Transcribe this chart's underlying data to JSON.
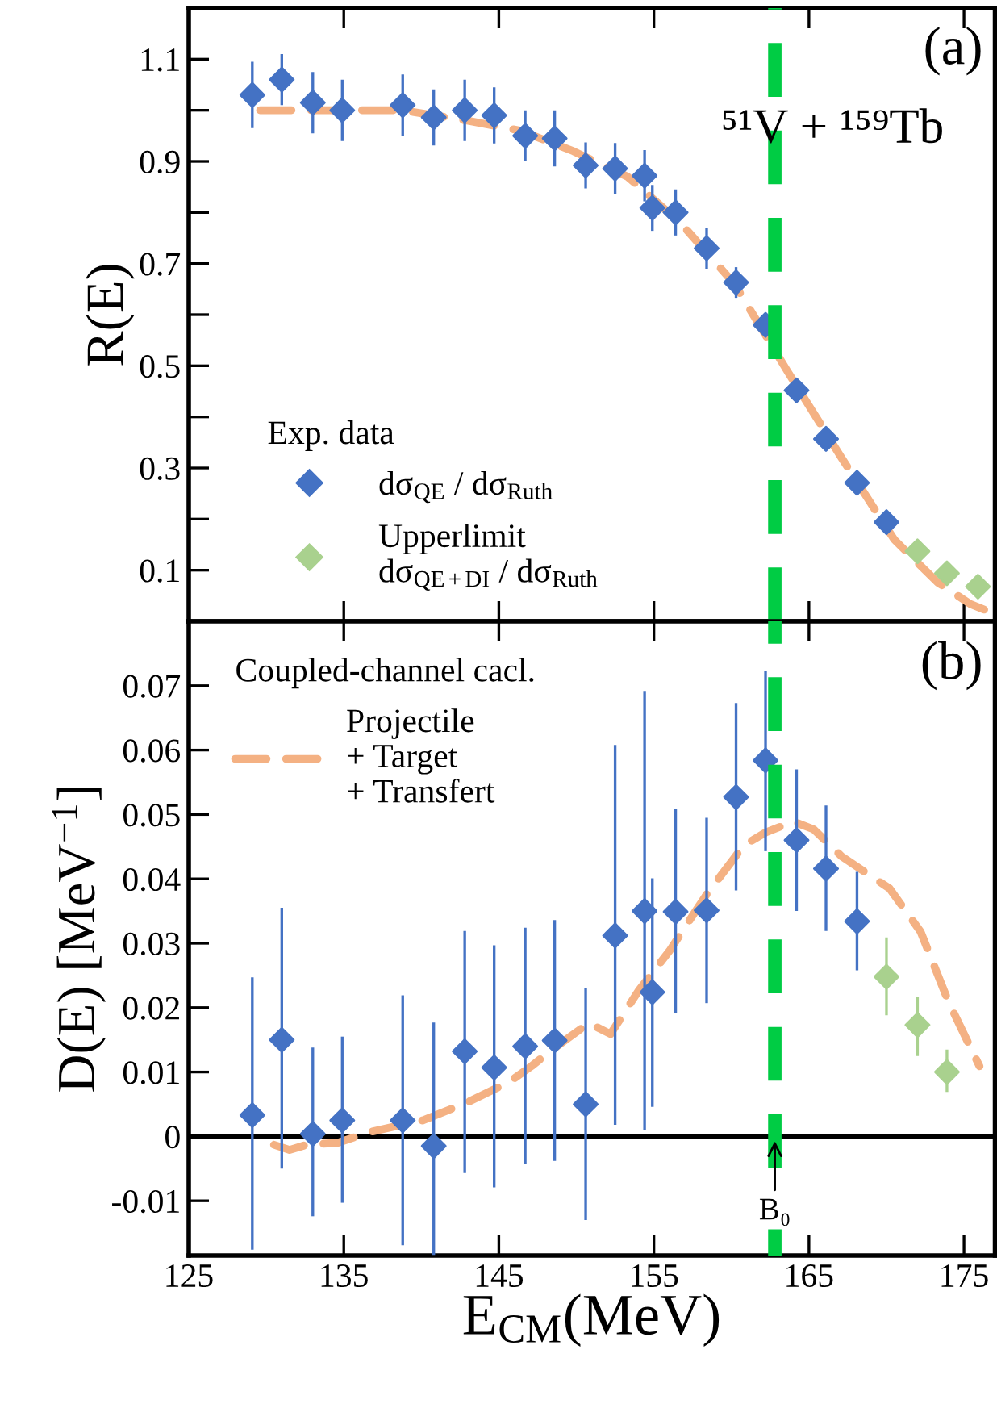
{
  "chart_data": [
    {
      "type": "scatter",
      "ylabel": "R(E)",
      "legend_title": "Exp. data",
      "legend": "bottom left",
      "tick_labels": "y",
      "grid": false,
      "xlim": [
        125,
        177
      ],
      "xticks": [
        125,
        135,
        145,
        155,
        165,
        175
      ],
      "ylim": [
        0,
        1.2
      ],
      "yticks": [
        0.1,
        {
          "value": 0.2,
          "label": null
        },
        0.3,
        {
          "value": 0.4,
          "label": null
        },
        0.5,
        {
          "value": 0.6,
          "label": null
        },
        0.7,
        {
          "value": 0.8,
          "label": null
        },
        0.9,
        {
          "value": 1.0,
          "label": null
        },
        1.1
      ],
      "annotations": [
        "(a)",
        "⁵¹V + ¹⁵⁹Tb"
      ],
      "ref_lines": [
        {
          "axis": "x",
          "value": 162.8,
          "color": "#00cc44",
          "line_style": "dashed"
        }
      ],
      "series": [
        {
          "type": "line",
          "color": "#f4b183",
          "line_style": "dashed",
          "marker": "none",
          "x": [
            129.6,
            138.8,
            142.9,
            146.4,
            149.8,
            153.3,
            156.7,
            160.2,
            162.2,
            163.6,
            167.1,
            170.5,
            173.3,
            175.4,
            176.3
          ],
          "values": [
            1.0,
            1.0,
            0.98,
            0.96,
            0.92,
            0.87,
            0.78,
            0.66,
            0.56,
            0.49,
            0.32,
            0.16,
            0.076,
            0.034,
            0.023
          ]
        },
        {
          "name": "dσ$_{QE}$ / dσ$_{Ruth}$",
          "color": "#4472c4",
          "marker": "diamond",
          "x": [
            129.1,
            131.0,
            133.0,
            134.9,
            138.8,
            140.8,
            142.8,
            144.7,
            146.7,
            148.6,
            150.6,
            152.5,
            154.4,
            154.9,
            156.4,
            158.4,
            160.3,
            162.2,
            164.2,
            166.1,
            168.1,
            170.0
          ],
          "values": [
            1.03,
            1.06,
            1.015,
            1.0,
            1.01,
            0.986,
            1.0,
            0.99,
            0.95,
            0.945,
            0.892,
            0.886,
            0.872,
            0.809,
            0.8,
            0.73,
            0.663,
            0.58,
            0.452,
            0.357,
            0.271,
            0.194
          ],
          "errors": [
            0.065,
            0.05,
            0.06,
            0.06,
            0.06,
            0.055,
            0.06,
            0.055,
            0.05,
            0.055,
            0.045,
            0.05,
            0.05,
            0.045,
            0.045,
            0.04,
            0.03,
            null,
            null,
            null,
            null,
            null
          ]
        },
        {
          "name": "Upperlimit\ndσ$_{QE+DI}$ / dσ$_{Ruth}$",
          "color": "#a9d18e",
          "marker": "diamond",
          "x": [
            172.0,
            173.9,
            175.9
          ],
          "values": [
            0.137,
            0.094,
            0.068
          ]
        }
      ]
    },
    {
      "type": "scatter",
      "xlabel": "E$_{CM}$(MeV)",
      "ylabel": "D(E) [MeV$^{−1}$]",
      "legend_title": "Coupled-channel cacl.",
      "legend": "top left",
      "grid": false,
      "xlim": [
        125,
        177
      ],
      "xticks": [
        125,
        135,
        145,
        155,
        165,
        175
      ],
      "ylim": [
        -0.0185,
        0.08
      ],
      "yticks": [
        {
          "value": -0.01,
          "label": "-0.01"
        },
        0,
        0.01,
        0.02,
        0.03,
        0.04,
        0.05,
        0.06,
        0.07
      ],
      "annotations": [
        "(b)",
        {
          "text": "B₀",
          "x": 162.8,
          "y": 0
        }
      ],
      "ref_lines": [
        {
          "axis": "x",
          "value": 162.8,
          "color": "#00cc44",
          "line_style": "dashed"
        },
        {
          "axis": "y",
          "value": 0,
          "color": "#000000",
          "line_style": "solid"
        }
      ],
      "series": [
        {
          "type": "line",
          "name": "Projectile\n+ Target\n+ Transfert",
          "color": "#f4b183",
          "line_style": "dashed",
          "marker": "none",
          "x": [
            130.5,
            131.5,
            132.6,
            134.6,
            136.7,
            140.1,
            142.9,
            145.7,
            147.1,
            148.4,
            150.8,
            152.2,
            154.0,
            156.0,
            158.4,
            160.8,
            162.2,
            164.0,
            165.3,
            167.1,
            170.2,
            172.2,
            174.0,
            176.0
          ],
          "values": [
            -0.0013,
            -0.0021,
            -0.0013,
            -0.001,
            0.0007,
            0.0025,
            0.0052,
            0.0085,
            0.0109,
            0.0134,
            0.0176,
            0.0159,
            0.0226,
            0.0288,
            0.0376,
            0.0452,
            0.0472,
            0.0489,
            0.0477,
            0.0435,
            0.0385,
            0.0318,
            0.0209,
            0.0109
          ]
        },
        {
          "color": "#4472c4",
          "marker": "diamond",
          "x": [
            129.1,
            131.0,
            133.0,
            134.9,
            138.8,
            140.8,
            142.8,
            144.7,
            146.7,
            148.6,
            150.6,
            152.5,
            154.4,
            154.9,
            156.4,
            158.4,
            160.3,
            162.2,
            164.2,
            166.1,
            168.1
          ],
          "values": [
            0.0033,
            0.015,
            0.0004,
            0.0025,
            0.0025,
            -0.0015,
            0.0132,
            0.0107,
            0.014,
            0.0149,
            0.005,
            0.0312,
            0.035,
            0.0224,
            0.0349,
            0.0351,
            0.0527,
            0.0584,
            0.046,
            0.0416,
            0.0334
          ],
          "errors": [
            [
              -0.0176,
              0.0247
            ],
            [
              -0.005,
              0.0355
            ],
            [
              -0.0124,
              0.0138
            ],
            [
              -0.0103,
              0.0155
            ],
            [
              -0.0169,
              0.0219
            ],
            [
              -0.0184,
              0.0177
            ],
            [
              -0.0057,
              0.0319
            ],
            [
              -0.0079,
              0.0297
            ],
            [
              -0.0043,
              0.0324
            ],
            [
              -0.0038,
              0.0336
            ],
            [
              -0.013,
              0.023
            ],
            [
              0.0018,
              0.0608
            ],
            [
              0.001,
              0.0692
            ],
            [
              0.0046,
              0.0401
            ],
            [
              0.0191,
              0.0508
            ],
            [
              0.0207,
              0.0495
            ],
            [
              0.0382,
              0.0673
            ],
            [
              0.0443,
              0.0723
            ],
            [
              0.035,
              0.057
            ],
            [
              0.0319,
              0.0514
            ],
            [
              0.0258,
              0.0411
            ]
          ]
        },
        {
          "color": "#a9d18e",
          "marker": "diamond",
          "x": [
            170.0,
            172.0,
            173.9
          ],
          "values": [
            0.0248,
            0.0173,
            0.01
          ],
          "errors": [
            [
              0.0188,
              0.0309
            ],
            [
              0.0125,
              0.0217
            ],
            [
              0.0069,
              0.0135
            ]
          ]
        }
      ]
    }
  ]
}
